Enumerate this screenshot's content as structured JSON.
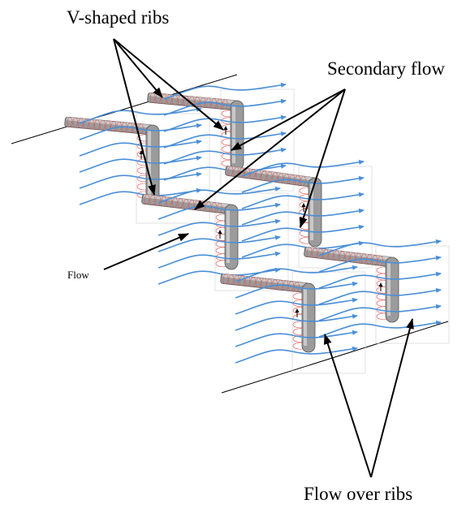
{
  "labels": {
    "v_shaped_ribs": "V-shaped ribs",
    "secondary_flow": "Secondary flow",
    "flow": "Flow",
    "flow_over_ribs": "Flow over ribs"
  },
  "colors": {
    "streamline": "#4a8fd8",
    "vortex": "#e05050",
    "rib_fill": "#9b9b9b",
    "rib_top": "#c9c9c9",
    "rib_edge": "#555555",
    "panel_edge": "#d4d4d4",
    "arrow": "#000000"
  },
  "icons": {
    "streamline_arrow": "arrowhead-icon",
    "callout_arrow": "arrowhead-icon"
  }
}
